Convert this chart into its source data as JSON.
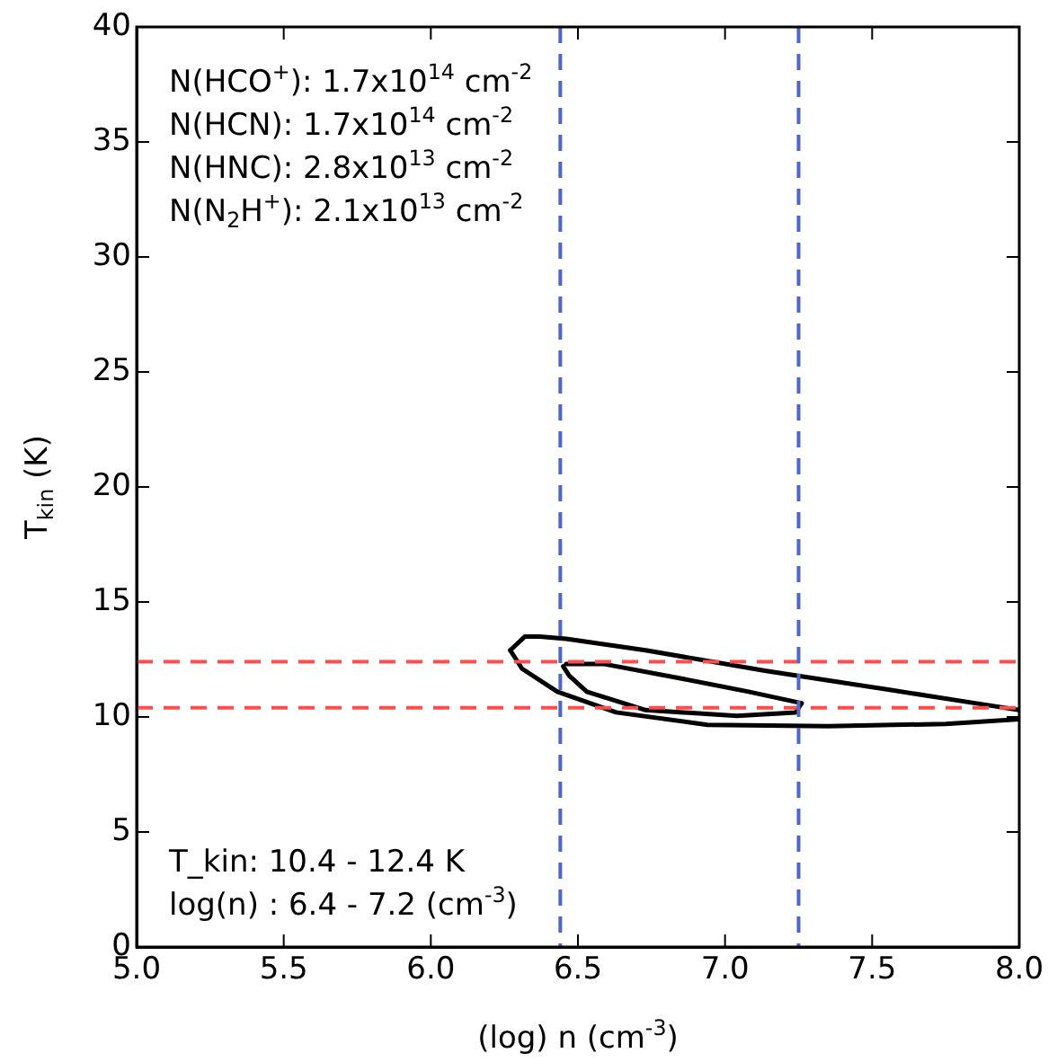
{
  "chart_data": {
    "type": "line",
    "xlabel": "(log) n (cm$^{-3}$)",
    "ylabel": "T$_{kin}$ (K)",
    "xlim": [
      5.0,
      8.0
    ],
    "xticks": [
      {
        "value": 5.0,
        "label": "5.0"
      },
      {
        "value": 5.5,
        "label": "5.5"
      },
      {
        "value": 6.0,
        "label": "6.0"
      },
      {
        "value": 6.5,
        "label": "6.5"
      },
      {
        "value": 7.0,
        "label": "7.0"
      },
      {
        "value": 7.5,
        "label": "7.5"
      },
      {
        "value": 8.0,
        "label": "8.0"
      }
    ],
    "ylim": [
      0,
      40
    ],
    "yticks": [
      0,
      5,
      10,
      15,
      20,
      25,
      30,
      35,
      40
    ],
    "grid": false,
    "legend": false,
    "marker": "none",
    "line_style": "solid",
    "series": [
      {
        "color": "#000000",
        "x": [
          6.27,
          6.32,
          6.37,
          6.46,
          6.73,
          7.14,
          7.55,
          7.85,
          8.0
        ],
        "values": [
          12.9,
          13.5,
          13.5,
          13.4,
          12.9,
          12.0,
          11.2,
          10.6,
          10.3
        ]
      },
      {
        "color": "#000000",
        "x": [
          6.27,
          6.31,
          6.43,
          6.63,
          6.94,
          7.35,
          7.75,
          8.0
        ],
        "values": [
          12.9,
          12.1,
          11.1,
          10.2,
          9.66,
          9.6,
          9.7,
          9.9
        ]
      },
      {
        "color": "#000000",
        "x": [
          6.46,
          6.59,
          6.84,
          7.08,
          7.26
        ],
        "values": [
          12.3,
          12.3,
          11.7,
          11.1,
          10.6
        ]
      },
      {
        "color": "#000000",
        "x": [
          6.45,
          6.47,
          6.53,
          6.73,
          7.04,
          7.24,
          7.26
        ],
        "values": [
          12.2,
          11.8,
          11.1,
          10.3,
          10.05,
          10.2,
          10.6
        ]
      }
    ],
    "ref_lines": [
      {
        "axis": "y",
        "value": 10.4,
        "color": "#ff4d4d",
        "line_style": "dashed"
      },
      {
        "axis": "y",
        "value": 12.4,
        "color": "#ff4d4d",
        "line_style": "dashed"
      },
      {
        "axis": "x",
        "value": 6.44,
        "color": "#4d66cc",
        "line_style": "dashed"
      },
      {
        "axis": "x",
        "value": 7.25,
        "color": "#4d66cc",
        "line_style": "dashed"
      }
    ],
    "annotations": [
      "N(HCO$^{+}$): 1.7x10$^{14}$ cm$^{-2}$",
      "N(HCN): 1.7x10$^{14}$ cm$^{-2}$",
      "N(HNC): 2.8x10$^{13}$ cm$^{-2}$",
      "N(N$_{2}$H$^{+}$): 2.1x10$^{13}$ cm$^{-2}$",
      "T_kin: 10.4 - 12.4 K",
      "log(n) : 6.4 - 7.2 (cm$^{-3}$)"
    ]
  }
}
